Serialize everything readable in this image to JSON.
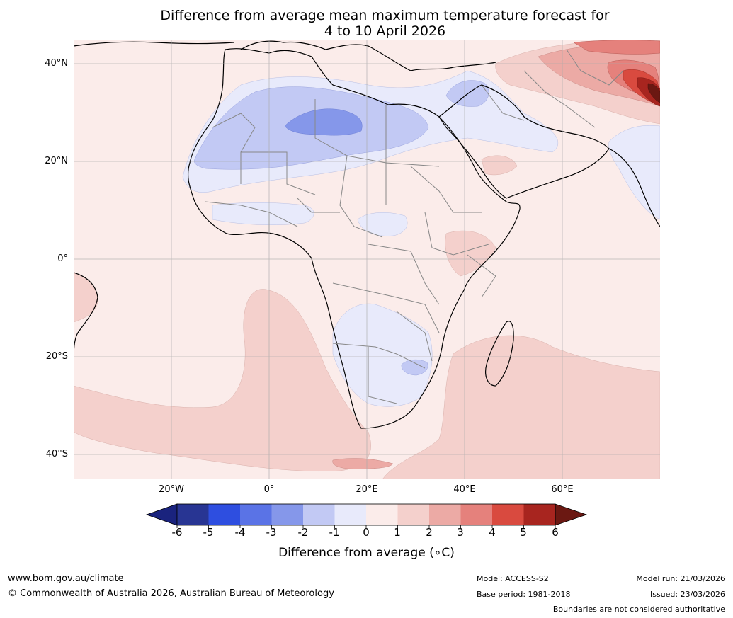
{
  "title": {
    "line1": "Difference from average mean maximum temperature forecast for",
    "line2": "4 to 10 April 2026"
  },
  "axes": {
    "lat_labels": [
      "40°N",
      "20°N",
      "0°",
      "20°S",
      "40°S"
    ],
    "lon_labels": [
      "20°W",
      "0°",
      "20°E",
      "40°E",
      "60°E"
    ]
  },
  "colorbar": {
    "ticks": [
      "-6",
      "-5",
      "-4",
      "-3",
      "-2",
      "-1",
      "0",
      "1",
      "2",
      "3",
      "4",
      "5",
      "6"
    ],
    "colors": [
      "#1a237e",
      "#283593",
      "#2e4ee0",
      "#5a73e6",
      "#8597ea",
      "#c2c9f4",
      "#e8eafb",
      "#fbecea",
      "#f4d0cc",
      "#ecaaa5",
      "#e5817c",
      "#d94a3f",
      "#a8251f",
      "#6b1812"
    ],
    "label": "Difference from average (∘C)"
  },
  "footer": {
    "website": "www.bom.gov.au/climate",
    "copyright": "© Commonwealth of Australia 2026, Australian Bureau of Meteorology",
    "model": "Model: ACCESS-S2",
    "base_period": "Base period: 1981-2018",
    "model_run": "Model run: 21/03/2026",
    "issued": "Issued: 23/03/2026",
    "disclaimer": "Boundaries are not considered authoritative"
  }
}
